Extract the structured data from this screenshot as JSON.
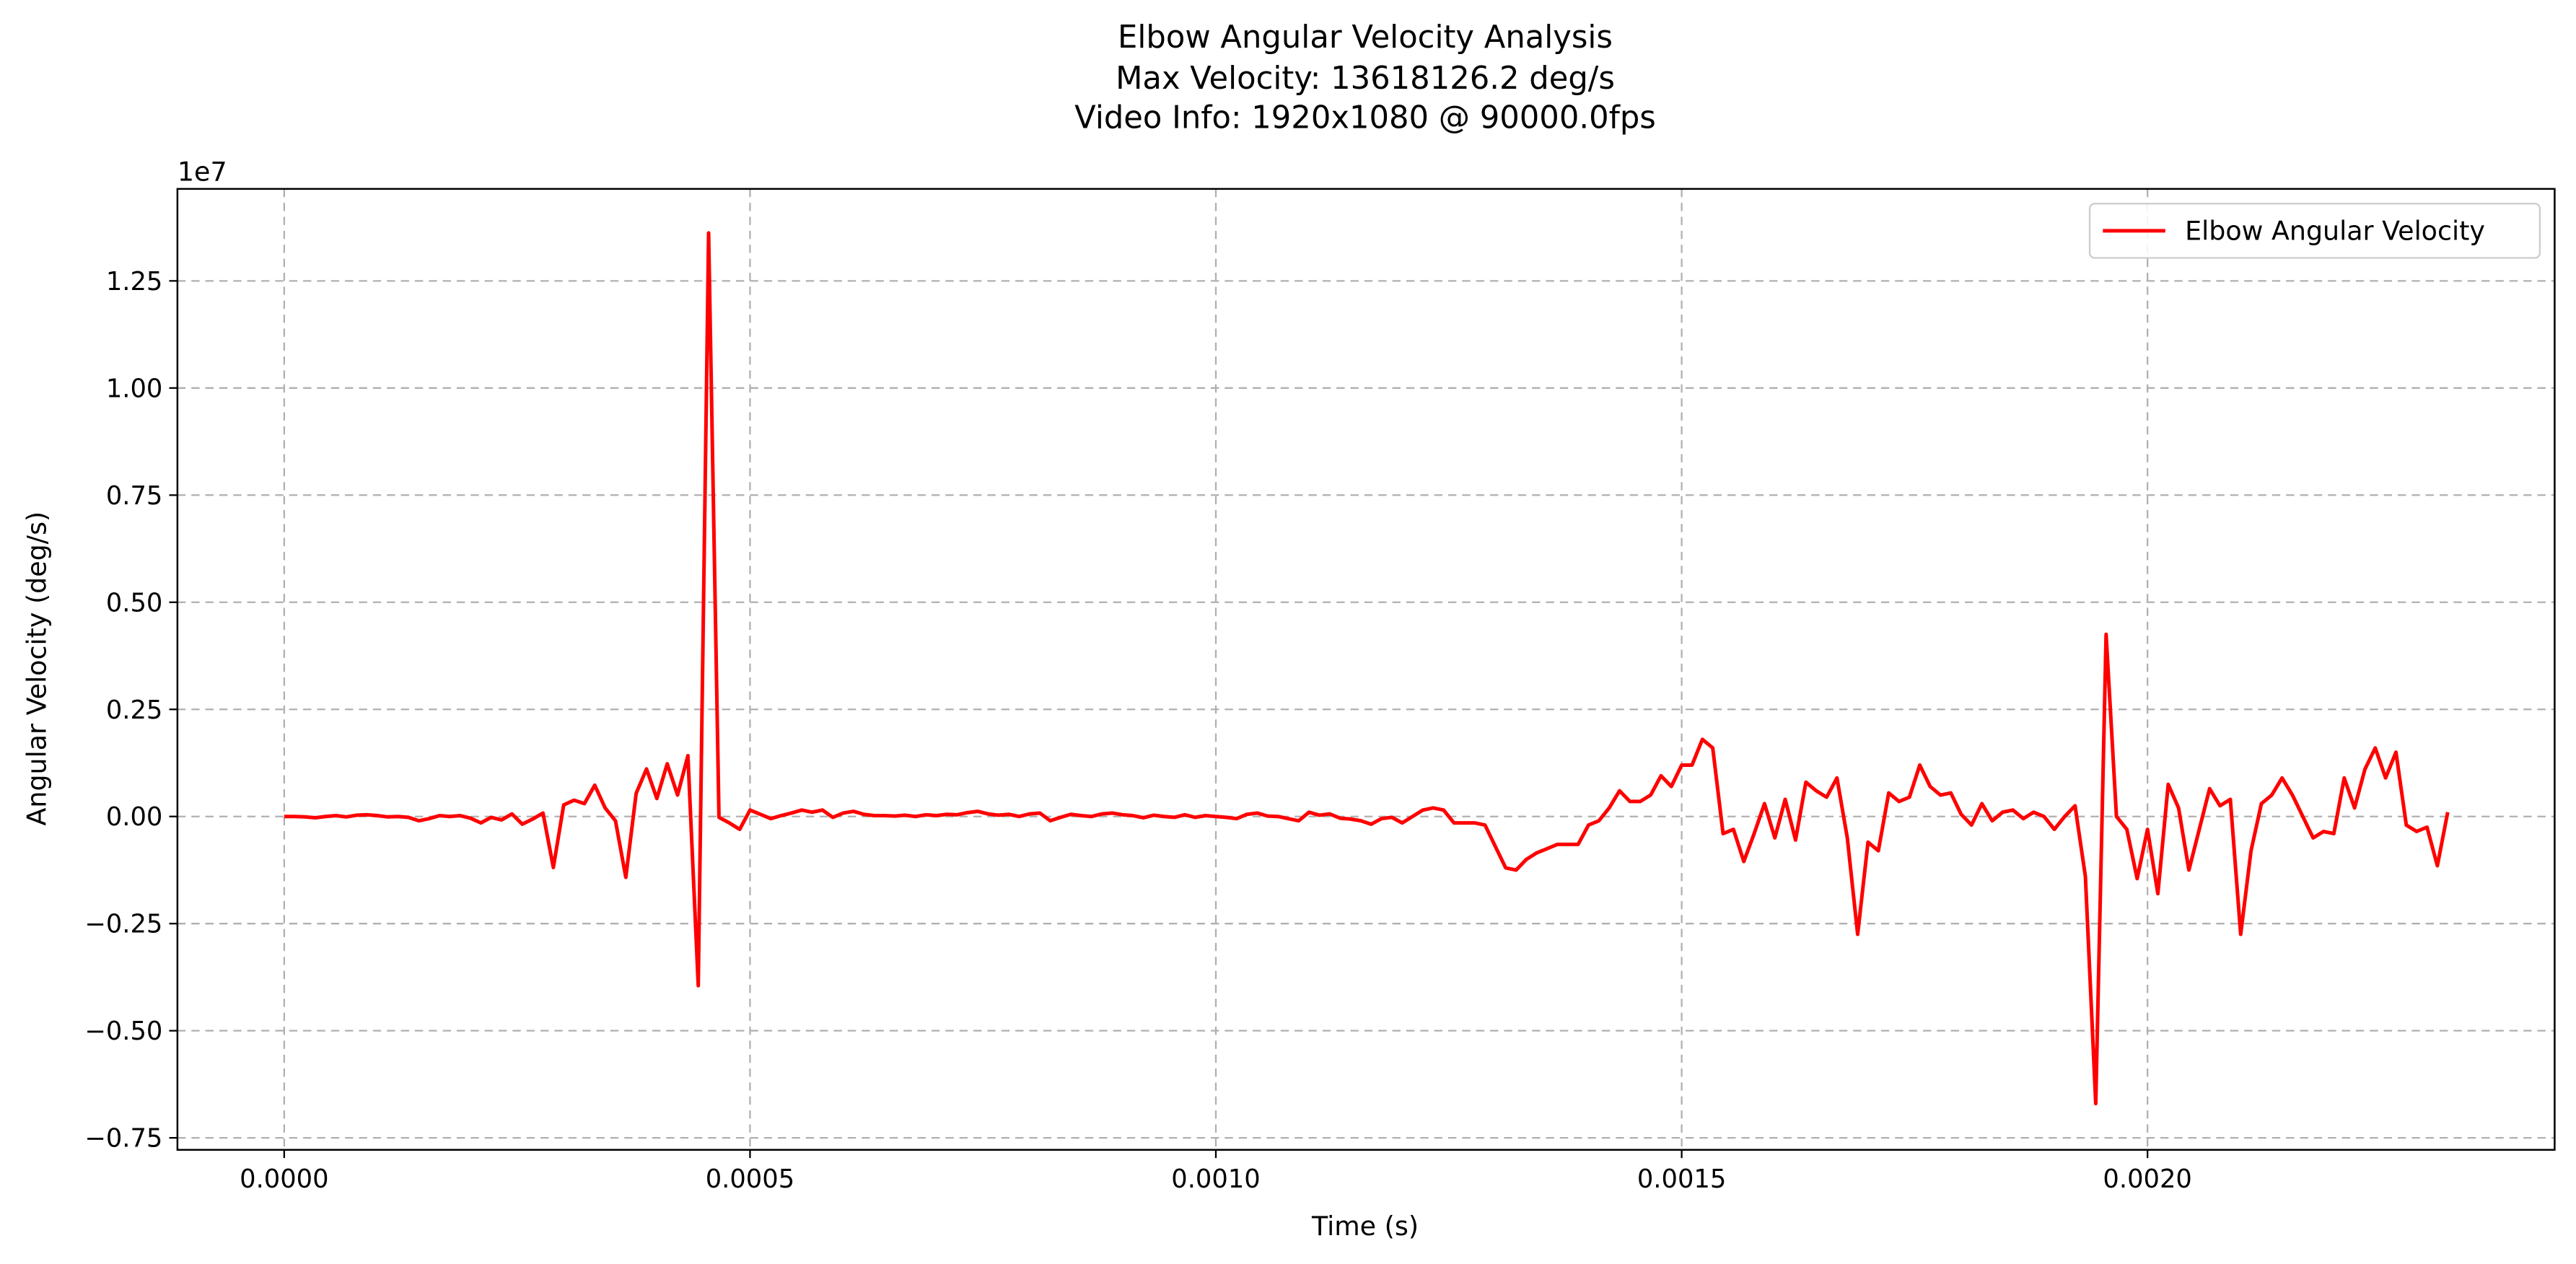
{
  "chart_data": {
    "type": "line",
    "title": "Elbow Angular Velocity Analysis",
    "subtitle": [
      "Max Velocity: 13618126.2 deg/s",
      "Video Info: 1920x1080 @ 90000.0fps"
    ],
    "x_label": "Time (s)",
    "y_label": "Angular Velocity (deg/s)",
    "y_offset_label": "1e7",
    "legend": "upper right",
    "grid": true,
    "xlim": [
      -0.0001146,
      0.002437
    ],
    "ylim": [
      -7780000,
      14647000
    ],
    "xticks": [
      {
        "value": 0,
        "label": "0.0000"
      },
      {
        "value": 0.0005,
        "label": "0.0005"
      },
      {
        "value": 0.001,
        "label": "0.0010"
      },
      {
        "value": 0.0015,
        "label": "0.0015"
      },
      {
        "value": 0.002,
        "label": "0.0020"
      }
    ],
    "yticks": [
      {
        "value": -7500000,
        "label": "−0.75"
      },
      {
        "value": -5000000,
        "label": "−0.50"
      },
      {
        "value": -2500000,
        "label": "−0.25"
      },
      {
        "value": 0,
        "label": "0.00"
      },
      {
        "value": 2500000,
        "label": "0.25"
      },
      {
        "value": 5000000,
        "label": "0.50"
      },
      {
        "value": 7500000,
        "label": "0.75"
      },
      {
        "value": 10000000,
        "label": "1.00"
      },
      {
        "value": 12500000,
        "label": "1.25"
      }
    ],
    "x": [
      0,
      1.111e-05,
      2.222e-05,
      3.333e-05,
      4.444e-05,
      5.556e-05,
      6.667e-05,
      7.778e-05,
      8.889e-05,
      0.0001,
      0.00011111,
      0.00012222,
      0.00013333,
      0.00014444,
      0.00015556,
      0.00016667,
      0.00017778,
      0.00018889,
      0.0002,
      0.00021111,
      0.00022222,
      0.00023333,
      0.00024444,
      0.00025556,
      0.00026667,
      0.00027778,
      0.00028889,
      0.0003,
      0.00031111,
      0.00032222,
      0.00033333,
      0.00034444,
      0.00035556,
      0.00036667,
      0.00037778,
      0.00038889,
      0.0004,
      0.00041111,
      0.00042222,
      0.00043333,
      0.00044444,
      0.00045556,
      0.00046667,
      0.00047778,
      0.00048889,
      0.0005,
      0.00051111,
      0.00052222,
      0.00053333,
      0.00054444,
      0.00055556,
      0.00056667,
      0.00057778,
      0.00058889,
      0.0006,
      0.00061111,
      0.00062222,
      0.00063333,
      0.00064444,
      0.00065556,
      0.00066667,
      0.00067778,
      0.00068889,
      0.0007,
      0.00071111,
      0.00072222,
      0.00073333,
      0.00074444,
      0.00075556,
      0.00076667,
      0.00077778,
      0.00078889,
      0.0008,
      0.00081111,
      0.00082222,
      0.00083333,
      0.00084444,
      0.00085556,
      0.00086667,
      0.00087778,
      0.00088889,
      0.0009,
      0.00091111,
      0.00092222,
      0.00093333,
      0.00094444,
      0.00095556,
      0.00096667,
      0.00097778,
      0.00098889,
      0.001,
      0.00101111,
      0.00102222,
      0.00103333,
      0.00104444,
      0.00105556,
      0.00106667,
      0.00107778,
      0.00108889,
      0.0011,
      0.00111111,
      0.00112222,
      0.00113333,
      0.00114444,
      0.00115556,
      0.00116667,
      0.00117778,
      0.00118889,
      0.0012,
      0.00121111,
      0.00122222,
      0.00123333,
      0.00124444,
      0.00125556,
      0.00126667,
      0.00127778,
      0.00128889,
      0.0013,
      0.00131111,
      0.00132222,
      0.00133333,
      0.00134444,
      0.00135556,
      0.00136667,
      0.00137778,
      0.00138889,
      0.0014,
      0.00141111,
      0.00142222,
      0.00143333,
      0.00144444,
      0.00145556,
      0.00146667,
      0.00147778,
      0.00148889,
      0.0015,
      0.00151111,
      0.00152222,
      0.00153333,
      0.00154444,
      0.00155556,
      0.00156667,
      0.00157778,
      0.00158889,
      0.0016,
      0.00161111,
      0.00162222,
      0.00163333,
      0.00164444,
      0.00165556,
      0.00166667,
      0.00167778,
      0.00168889,
      0.0017,
      0.00171111,
      0.00172222,
      0.00173333,
      0.00174444,
      0.00175556,
      0.00176667,
      0.00177778,
      0.00178889,
      0.0018,
      0.00181111,
      0.00182222,
      0.00183333,
      0.00184444,
      0.00185556,
      0.00186667,
      0.00187778,
      0.00188889,
      0.0019,
      0.00191111,
      0.00192222,
      0.00193333,
      0.00194444,
      0.00195556,
      0.00196667,
      0.00197778,
      0.00198889,
      0.002,
      0.00201111,
      0.00202222,
      0.00203333,
      0.00204444,
      0.00205556,
      0.00206667,
      0.00207778,
      0.00208889,
      0.0021,
      0.00211111,
      0.00212222,
      0.00213333,
      0.00214444,
      0.00215556,
      0.00216667,
      0.00217778,
      0.00218889,
      0.0022,
      0.00221111,
      0.00222222,
      0.00223333,
      0.00224444,
      0.00225556,
      0.00226667,
      0.00227778,
      0.00228889,
      0.0023,
      0.00231111,
      0.00232222
    ],
    "series": [
      {
        "name": "Elbow Angular Velocity",
        "color": "#ff0000",
        "values": [
          0,
          0,
          -10000,
          -30000,
          0,
          20000,
          -10000,
          30000,
          40000,
          20000,
          -10000,
          0,
          -20000,
          -100000,
          -50000,
          20000,
          0,
          20000,
          -40000,
          -150000,
          -20000,
          -80000,
          60000,
          -180000,
          -60000,
          80000,
          -1190000,
          270000,
          380000,
          300000,
          730000,
          200000,
          -100000,
          -1420000,
          540000,
          1110000,
          420000,
          1230000,
          500000,
          1420000,
          -3950000,
          13618126.2,
          -20000,
          -150000,
          -300000,
          150000,
          50000,
          -50000,
          20000,
          80000,
          150000,
          100000,
          150000,
          -20000,
          80000,
          120000,
          50000,
          20000,
          20000,
          10000,
          30000,
          0,
          40000,
          20000,
          50000,
          40000,
          90000,
          120000,
          60000,
          30000,
          50000,
          0,
          60000,
          80000,
          -100000,
          -20000,
          50000,
          20000,
          0,
          60000,
          80000,
          40000,
          20000,
          -30000,
          30000,
          0,
          -20000,
          40000,
          -20000,
          20000,
          0,
          -20000,
          -50000,
          50000,
          80000,
          10000,
          0,
          -50000,
          -100000,
          100000,
          30000,
          60000,
          -40000,
          -60000,
          -100000,
          -180000,
          -50000,
          -20000,
          -150000,
          0,
          150000,
          200000,
          150000,
          -150000,
          -150000,
          -150000,
          -200000,
          -700000,
          -1200000,
          -1250000,
          -1000000,
          -850000,
          -750000,
          -650000,
          -650000,
          -650000,
          -200000,
          -100000,
          200000,
          600000,
          350000,
          350000,
          500000,
          950000,
          700000,
          1200000,
          1200000,
          1800000,
          1600000,
          -400000,
          -300000,
          -1050000,
          -400000,
          300000,
          -500000,
          400000,
          -550000,
          800000,
          600000,
          450000,
          900000,
          -500000,
          -2750000,
          -600000,
          -800000,
          550000,
          350000,
          450000,
          1200000,
          700000,
          500000,
          550000,
          50000,
          -200000,
          300000,
          -100000,
          100000,
          150000,
          -50000,
          100000,
          0,
          -300000,
          0,
          250000,
          -1400000,
          -6700000,
          4250000,
          0,
          -300000,
          -1450000,
          -300000,
          -1800000,
          750000,
          200000,
          -1250000,
          -300000,
          650000,
          250000,
          400000,
          -2750000,
          -800000,
          300000,
          500000,
          900000,
          500000,
          0,
          -500000,
          -350000,
          -400000,
          900000,
          200000,
          1100000,
          1600000,
          900000,
          1500000,
          -200000,
          -350000,
          -250000,
          -1150000,
          100000
        ]
      }
    ]
  }
}
